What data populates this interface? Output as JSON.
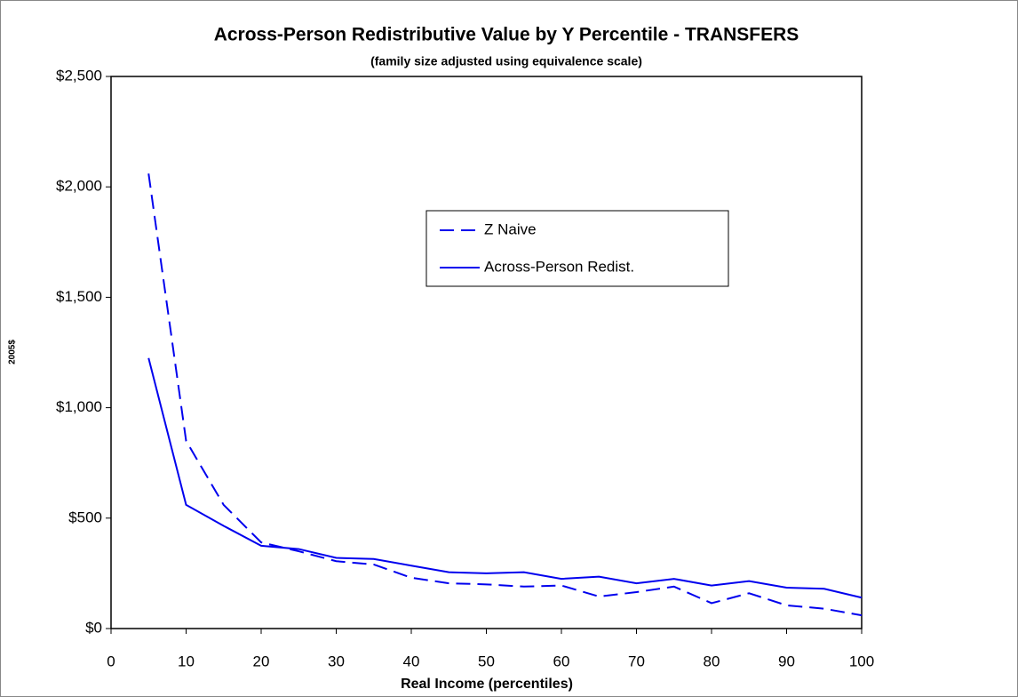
{
  "chart_data": {
    "type": "line",
    "title": "Across-Person Redistributive Value by Y Percentile - TRANSFERS",
    "subtitle": "(family size adjusted using equivalence scale)",
    "x_label": "Real Income (percentiles)",
    "y_label": "2005$",
    "x": [
      5,
      10,
      15,
      20,
      25,
      30,
      35,
      40,
      45,
      50,
      55,
      60,
      65,
      70,
      75,
      80,
      85,
      90,
      95,
      100
    ],
    "series": [
      {
        "name": "Z Naive",
        "color": "#0000ee",
        "line_style": "dashed",
        "values": [
          2060,
          850,
          560,
          390,
          350,
          305,
          290,
          230,
          205,
          200,
          190,
          195,
          145,
          165,
          190,
          115,
          160,
          105,
          90,
          60
        ]
      },
      {
        "name": "Across-Person  Redist.",
        "color": "#0000ee",
        "line_style": "solid",
        "values": [
          1225,
          560,
          465,
          375,
          360,
          320,
          315,
          285,
          255,
          250,
          255,
          225,
          235,
          205,
          225,
          195,
          215,
          185,
          180,
          140
        ]
      }
    ],
    "xlim": [
      0,
      100
    ],
    "xticks": [
      0,
      10,
      20,
      30,
      40,
      50,
      60,
      70,
      80,
      90,
      100
    ],
    "ylim": [
      0,
      2500
    ],
    "yticks": [
      {
        "value": 0,
        "label": "$0"
      },
      {
        "value": 500,
        "label": "$500"
      },
      {
        "value": 1000,
        "label": "$1,000"
      },
      {
        "value": 1500,
        "label": "$1,500"
      },
      {
        "value": 2000,
        "label": "$2,000"
      },
      {
        "value": 2500,
        "label": "$2,500"
      }
    ],
    "grid": false,
    "legend": "upper right"
  }
}
